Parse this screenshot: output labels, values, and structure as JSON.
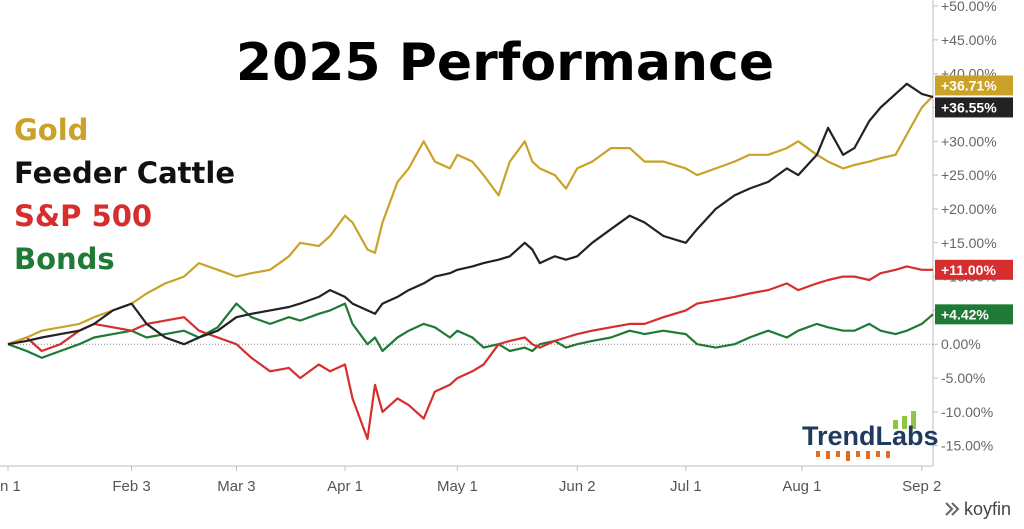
{
  "chart_data": {
    "type": "line",
    "title": "2025 Performance",
    "xlabel": "",
    "ylabel": "",
    "ylim": [
      -18,
      50
    ],
    "y_ticks": [
      "+50.00%",
      "+45.00%",
      "+40.00%",
      "+35.00%",
      "+30.00%",
      "+25.00%",
      "+20.00%",
      "+15.00%",
      "+10.00%",
      "+5.00%",
      "0.00%",
      "-5.00%",
      "-10.00%",
      "-15.00%"
    ],
    "y_tick_values": [
      50,
      45,
      40,
      35,
      30,
      25,
      20,
      15,
      10,
      5,
      0,
      -5,
      -10,
      -15
    ],
    "x_tick_labels": [
      "n 1",
      "Feb 3",
      "Mar 3",
      "Apr 1",
      "May 1",
      "Jun 2",
      "Jul 1",
      "Aug 1",
      "Sep 2"
    ],
    "x_tick_values": [
      "2025-01-01",
      "2025-02-03",
      "2025-03-03",
      "2025-04-01",
      "2025-05-01",
      "2025-06-02",
      "2025-07-01",
      "2025-08-01",
      "2025-09-02"
    ],
    "x_range": [
      "2025-01-01",
      "2025-09-05"
    ],
    "grid": false,
    "zero_line": true,
    "legend_position": "left",
    "series": [
      {
        "name": "Gold",
        "color": "#c9a227",
        "end_label": "+36.71%",
        "points": [
          [
            "2025-01-01",
            0
          ],
          [
            "2025-01-06",
            1
          ],
          [
            "2025-01-10",
            2
          ],
          [
            "2025-01-15",
            2.5
          ],
          [
            "2025-01-20",
            3
          ],
          [
            "2025-01-24",
            4
          ],
          [
            "2025-01-29",
            5
          ],
          [
            "2025-02-03",
            6
          ],
          [
            "2025-02-07",
            7.5
          ],
          [
            "2025-02-12",
            9
          ],
          [
            "2025-02-17",
            10
          ],
          [
            "2025-02-21",
            12
          ],
          [
            "2025-02-26",
            11
          ],
          [
            "2025-03-03",
            10
          ],
          [
            "2025-03-07",
            10.5
          ],
          [
            "2025-03-12",
            11
          ],
          [
            "2025-03-17",
            13
          ],
          [
            "2025-03-20",
            15
          ],
          [
            "2025-03-25",
            14.5
          ],
          [
            "2025-03-28",
            16
          ],
          [
            "2025-04-01",
            19
          ],
          [
            "2025-04-03",
            18
          ],
          [
            "2025-04-07",
            14
          ],
          [
            "2025-04-09",
            13.5
          ],
          [
            "2025-04-11",
            18
          ],
          [
            "2025-04-15",
            24
          ],
          [
            "2025-04-18",
            26
          ],
          [
            "2025-04-22",
            30
          ],
          [
            "2025-04-25",
            27
          ],
          [
            "2025-04-29",
            26
          ],
          [
            "2025-05-01",
            28
          ],
          [
            "2025-05-05",
            27
          ],
          [
            "2025-05-08",
            25
          ],
          [
            "2025-05-12",
            22
          ],
          [
            "2025-05-15",
            27
          ],
          [
            "2025-05-19",
            30
          ],
          [
            "2025-05-21",
            27
          ],
          [
            "2025-05-23",
            26
          ],
          [
            "2025-05-27",
            25
          ],
          [
            "2025-05-30",
            23
          ],
          [
            "2025-06-02",
            26
          ],
          [
            "2025-06-06",
            27
          ],
          [
            "2025-06-11",
            29
          ],
          [
            "2025-06-16",
            29
          ],
          [
            "2025-06-20",
            27
          ],
          [
            "2025-06-25",
            27
          ],
          [
            "2025-07-01",
            26
          ],
          [
            "2025-07-04",
            25
          ],
          [
            "2025-07-09",
            26
          ],
          [
            "2025-07-14",
            27
          ],
          [
            "2025-07-18",
            28
          ],
          [
            "2025-07-23",
            28
          ],
          [
            "2025-07-28",
            29
          ],
          [
            "2025-07-31",
            30
          ],
          [
            "2025-08-05",
            28
          ],
          [
            "2025-08-08",
            27
          ],
          [
            "2025-08-12",
            26
          ],
          [
            "2025-08-15",
            26.5
          ],
          [
            "2025-08-19",
            27
          ],
          [
            "2025-08-22",
            27.5
          ],
          [
            "2025-08-26",
            28
          ],
          [
            "2025-08-29",
            31
          ],
          [
            "2025-09-02",
            35
          ],
          [
            "2025-09-05",
            36.71
          ]
        ]
      },
      {
        "name": "Feeder Cattle",
        "color": "#222222",
        "end_label": "+36.55%",
        "points": [
          [
            "2025-01-01",
            0
          ],
          [
            "2025-01-06",
            0.5
          ],
          [
            "2025-01-10",
            1
          ],
          [
            "2025-01-15",
            1.5
          ],
          [
            "2025-01-20",
            2
          ],
          [
            "2025-01-24",
            3
          ],
          [
            "2025-01-29",
            5
          ],
          [
            "2025-02-03",
            6
          ],
          [
            "2025-02-07",
            3
          ],
          [
            "2025-02-12",
            1
          ],
          [
            "2025-02-17",
            0
          ],
          [
            "2025-02-21",
            1
          ],
          [
            "2025-02-26",
            2
          ],
          [
            "2025-03-03",
            4
          ],
          [
            "2025-03-07",
            4.5
          ],
          [
            "2025-03-12",
            5
          ],
          [
            "2025-03-17",
            5.5
          ],
          [
            "2025-03-20",
            6
          ],
          [
            "2025-03-25",
            7
          ],
          [
            "2025-03-28",
            8
          ],
          [
            "2025-04-01",
            7
          ],
          [
            "2025-04-03",
            6
          ],
          [
            "2025-04-07",
            5
          ],
          [
            "2025-04-09",
            4.5
          ],
          [
            "2025-04-11",
            6
          ],
          [
            "2025-04-15",
            7
          ],
          [
            "2025-04-18",
            8
          ],
          [
            "2025-04-22",
            9
          ],
          [
            "2025-04-25",
            10
          ],
          [
            "2025-04-29",
            10.5
          ],
          [
            "2025-05-01",
            11
          ],
          [
            "2025-05-05",
            11.5
          ],
          [
            "2025-05-08",
            12
          ],
          [
            "2025-05-12",
            12.5
          ],
          [
            "2025-05-15",
            13
          ],
          [
            "2025-05-19",
            15
          ],
          [
            "2025-05-21",
            14
          ],
          [
            "2025-05-23",
            12
          ],
          [
            "2025-05-27",
            13
          ],
          [
            "2025-05-30",
            12.5
          ],
          [
            "2025-06-02",
            13
          ],
          [
            "2025-06-06",
            15
          ],
          [
            "2025-06-11",
            17
          ],
          [
            "2025-06-16",
            19
          ],
          [
            "2025-06-20",
            18
          ],
          [
            "2025-06-25",
            16
          ],
          [
            "2025-07-01",
            15
          ],
          [
            "2025-07-04",
            17
          ],
          [
            "2025-07-09",
            20
          ],
          [
            "2025-07-14",
            22
          ],
          [
            "2025-07-18",
            23
          ],
          [
            "2025-07-23",
            24
          ],
          [
            "2025-07-28",
            26
          ],
          [
            "2025-07-31",
            25
          ],
          [
            "2025-08-05",
            28
          ],
          [
            "2025-08-08",
            32
          ],
          [
            "2025-08-12",
            28
          ],
          [
            "2025-08-15",
            29
          ],
          [
            "2025-08-19",
            33
          ],
          [
            "2025-08-22",
            35
          ],
          [
            "2025-08-26",
            37
          ],
          [
            "2025-08-29",
            38.5
          ],
          [
            "2025-09-02",
            37
          ],
          [
            "2025-09-05",
            36.55
          ]
        ]
      },
      {
        "name": "S&P 500",
        "color": "#d62e2e",
        "end_label": "+11.00%",
        "points": [
          [
            "2025-01-01",
            0
          ],
          [
            "2025-01-06",
            1
          ],
          [
            "2025-01-10",
            -1
          ],
          [
            "2025-01-15",
            0
          ],
          [
            "2025-01-20",
            2
          ],
          [
            "2025-01-24",
            3
          ],
          [
            "2025-01-29",
            2.5
          ],
          [
            "2025-02-03",
            2
          ],
          [
            "2025-02-07",
            3
          ],
          [
            "2025-02-12",
            3.5
          ],
          [
            "2025-02-17",
            4
          ],
          [
            "2025-02-21",
            2
          ],
          [
            "2025-02-26",
            1
          ],
          [
            "2025-03-03",
            0
          ],
          [
            "2025-03-07",
            -2
          ],
          [
            "2025-03-12",
            -4
          ],
          [
            "2025-03-17",
            -3.5
          ],
          [
            "2025-03-20",
            -5
          ],
          [
            "2025-03-25",
            -3
          ],
          [
            "2025-03-28",
            -4
          ],
          [
            "2025-04-01",
            -3
          ],
          [
            "2025-04-03",
            -8
          ],
          [
            "2025-04-07",
            -14
          ],
          [
            "2025-04-09",
            -6
          ],
          [
            "2025-04-11",
            -10
          ],
          [
            "2025-04-15",
            -8
          ],
          [
            "2025-04-18",
            -9
          ],
          [
            "2025-04-22",
            -11
          ],
          [
            "2025-04-25",
            -7
          ],
          [
            "2025-04-29",
            -6
          ],
          [
            "2025-05-01",
            -5
          ],
          [
            "2025-05-05",
            -4
          ],
          [
            "2025-05-08",
            -3
          ],
          [
            "2025-05-12",
            0
          ],
          [
            "2025-05-15",
            0.5
          ],
          [
            "2025-05-19",
            1
          ],
          [
            "2025-05-21",
            0
          ],
          [
            "2025-05-23",
            -0.5
          ],
          [
            "2025-05-27",
            0.5
          ],
          [
            "2025-05-30",
            1
          ],
          [
            "2025-06-02",
            1.5
          ],
          [
            "2025-06-06",
            2
          ],
          [
            "2025-06-11",
            2.5
          ],
          [
            "2025-06-16",
            3
          ],
          [
            "2025-06-20",
            3
          ],
          [
            "2025-06-25",
            4
          ],
          [
            "2025-07-01",
            5
          ],
          [
            "2025-07-04",
            6
          ],
          [
            "2025-07-09",
            6.5
          ],
          [
            "2025-07-14",
            7
          ],
          [
            "2025-07-18",
            7.5
          ],
          [
            "2025-07-23",
            8
          ],
          [
            "2025-07-28",
            9
          ],
          [
            "2025-07-31",
            8
          ],
          [
            "2025-08-05",
            9
          ],
          [
            "2025-08-08",
            9.5
          ],
          [
            "2025-08-12",
            10
          ],
          [
            "2025-08-15",
            10
          ],
          [
            "2025-08-19",
            9.5
          ],
          [
            "2025-08-22",
            10.5
          ],
          [
            "2025-08-26",
            11
          ],
          [
            "2025-08-29",
            11.5
          ],
          [
            "2025-09-02",
            11
          ],
          [
            "2025-09-05",
            11
          ]
        ]
      },
      {
        "name": "Bonds",
        "color": "#1e7a34",
        "end_label": "+4.42%",
        "points": [
          [
            "2025-01-01",
            0
          ],
          [
            "2025-01-06",
            -1
          ],
          [
            "2025-01-10",
            -2
          ],
          [
            "2025-01-15",
            -1
          ],
          [
            "2025-01-20",
            0
          ],
          [
            "2025-01-24",
            1
          ],
          [
            "2025-01-29",
            1.5
          ],
          [
            "2025-02-03",
            2
          ],
          [
            "2025-02-07",
            1
          ],
          [
            "2025-02-12",
            1.5
          ],
          [
            "2025-02-17",
            2
          ],
          [
            "2025-02-21",
            1
          ],
          [
            "2025-02-26",
            2.5
          ],
          [
            "2025-03-03",
            6
          ],
          [
            "2025-03-07",
            4
          ],
          [
            "2025-03-12",
            3
          ],
          [
            "2025-03-17",
            4
          ],
          [
            "2025-03-20",
            3.5
          ],
          [
            "2025-03-25",
            4.5
          ],
          [
            "2025-03-28",
            5
          ],
          [
            "2025-04-01",
            6
          ],
          [
            "2025-04-03",
            3
          ],
          [
            "2025-04-07",
            0
          ],
          [
            "2025-04-09",
            1
          ],
          [
            "2025-04-11",
            -1
          ],
          [
            "2025-04-15",
            1
          ],
          [
            "2025-04-18",
            2
          ],
          [
            "2025-04-22",
            3
          ],
          [
            "2025-04-25",
            2.5
          ],
          [
            "2025-04-29",
            1
          ],
          [
            "2025-05-01",
            2
          ],
          [
            "2025-05-05",
            1
          ],
          [
            "2025-05-08",
            -0.5
          ],
          [
            "2025-05-12",
            0
          ],
          [
            "2025-05-15",
            -1
          ],
          [
            "2025-05-19",
            -0.5
          ],
          [
            "2025-05-21",
            -1
          ],
          [
            "2025-05-23",
            0
          ],
          [
            "2025-05-27",
            0.5
          ],
          [
            "2025-05-30",
            -0.5
          ],
          [
            "2025-06-02",
            0
          ],
          [
            "2025-06-06",
            0.5
          ],
          [
            "2025-06-11",
            1
          ],
          [
            "2025-06-16",
            2
          ],
          [
            "2025-06-20",
            1.5
          ],
          [
            "2025-06-25",
            2
          ],
          [
            "2025-07-01",
            1.5
          ],
          [
            "2025-07-04",
            0
          ],
          [
            "2025-07-09",
            -0.5
          ],
          [
            "2025-07-14",
            0
          ],
          [
            "2025-07-18",
            1
          ],
          [
            "2025-07-23",
            2
          ],
          [
            "2025-07-28",
            1
          ],
          [
            "2025-07-31",
            2
          ],
          [
            "2025-08-05",
            3
          ],
          [
            "2025-08-08",
            2.5
          ],
          [
            "2025-08-12",
            2
          ],
          [
            "2025-08-15",
            2
          ],
          [
            "2025-08-19",
            3
          ],
          [
            "2025-08-22",
            2
          ],
          [
            "2025-08-26",
            1.5
          ],
          [
            "2025-08-29",
            2
          ],
          [
            "2025-09-02",
            3
          ],
          [
            "2025-09-05",
            4.42
          ]
        ]
      }
    ]
  },
  "branding": {
    "trendlabs": "TrendLabs",
    "koyfin": "koyfin",
    "trendlabs_color": "#1f3a5f",
    "trendlabs_accent_color": "#e06b24",
    "trendlabs_bars_color": "#8dc63f"
  }
}
